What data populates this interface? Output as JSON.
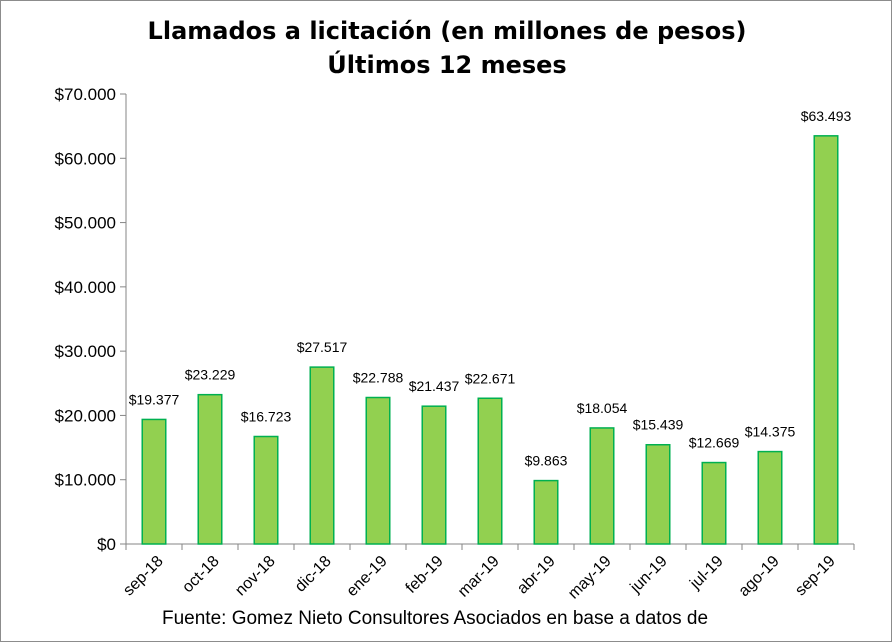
{
  "chart_data": {
    "type": "bar",
    "title": "Llamados a licitación (en millones de pesos)",
    "subtitle": "Últimos 12 meses",
    "categories": [
      "sep-18",
      "oct-18",
      "nov-18",
      "dic-18",
      "ene-19",
      "feb-19",
      "mar-19",
      "abr-19",
      "may-19",
      "jun-19",
      "jul-19",
      "ago-19",
      "sep-19"
    ],
    "values": [
      19377,
      23229,
      16723,
      27517,
      22788,
      21437,
      22671,
      9863,
      18054,
      15439,
      12669,
      14375,
      63493
    ],
    "data_labels": [
      "$19.377",
      "$23.229",
      "$16.723",
      "$27.517",
      "$22.788",
      "$21.437",
      "$22.671",
      "$9.863",
      "$18.054",
      "$15.439",
      "$12.669",
      "$14.375",
      "$63.493"
    ],
    "y_tick_values": [
      0,
      10000,
      20000,
      30000,
      40000,
      50000,
      60000,
      70000
    ],
    "y_tick_labels": [
      "$0",
      "$10.000",
      "$20.000",
      "$30.000",
      "$40.000",
      "$50.000",
      "$60.000",
      "$70.000"
    ],
    "ylim": [
      0,
      70000
    ],
    "xlabel": "",
    "ylabel": "",
    "grid": false,
    "legend": "none",
    "bar_fill": "#92d050",
    "bar_stroke": "#00b050"
  },
  "source_note": "Fuente: Gomez Nieto Consultores Asociados en base a datos de"
}
